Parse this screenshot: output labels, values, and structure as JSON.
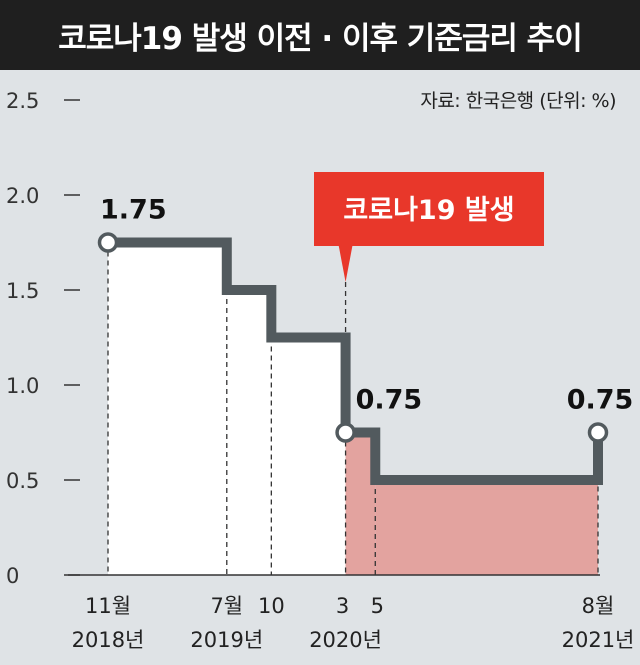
{
  "header": {
    "title": "코로나19 발생 이전 · 이후 기준금리 추이",
    "source": "자료: 한국은행  (단위: %)"
  },
  "colors": {
    "background": "#dfe3e6",
    "line": "#525a5e",
    "pre_covid_fill": "#ffffff",
    "post_covid_fill": "#e3a39f",
    "callout": "#e8372a",
    "title_bar": "#1f1f1f"
  },
  "chart_data": {
    "type": "line",
    "step": true,
    "title": "코로나19 발생 이전 · 이후 기준금리 추이",
    "ylabel": "",
    "unit": "%",
    "ylim": [
      0,
      2.5
    ],
    "yticks": [
      0,
      0.5,
      1.0,
      1.5,
      2.0,
      2.5
    ],
    "ytick_labels": [
      "0",
      "0.5",
      "1.0",
      "1.5",
      "2.0",
      "2.5"
    ],
    "grid": false,
    "series": [
      {
        "values": [
          {
            "x": "2018-11",
            "y": 1.75
          },
          {
            "x": "2019-07",
            "y": 1.5
          },
          {
            "x": "2019-10",
            "y": 1.25
          },
          {
            "x": "2020-03",
            "y": 0.75
          },
          {
            "x": "2020-05",
            "y": 0.5
          },
          {
            "x": "2021-08",
            "y": 0.75
          }
        ]
      }
    ],
    "x_ticks": [
      {
        "x": "2018-11",
        "line1": "11월",
        "line2": "2018년"
      },
      {
        "x": "2019-07",
        "line1": "7월",
        "line2": "2019년"
      },
      {
        "x": "2019-10",
        "line1": "10",
        "line2": ""
      },
      {
        "x": "2020-03",
        "line1": "3",
        "line2": "2020년"
      },
      {
        "x": "2020-05",
        "line1": "5",
        "line2": ""
      },
      {
        "x": "2021-08",
        "line1": "8월",
        "line2": "2021년"
      }
    ],
    "labeled_points": [
      {
        "x": "2018-11",
        "y": 1.75,
        "label": "1.75"
      },
      {
        "x": "2020-03",
        "y": 0.75,
        "label": "0.75"
      },
      {
        "x": "2021-08",
        "y": 0.75,
        "label": "0.75"
      }
    ],
    "annotations": [
      {
        "x": "2020-03",
        "text": "코로나19 발생"
      }
    ]
  }
}
